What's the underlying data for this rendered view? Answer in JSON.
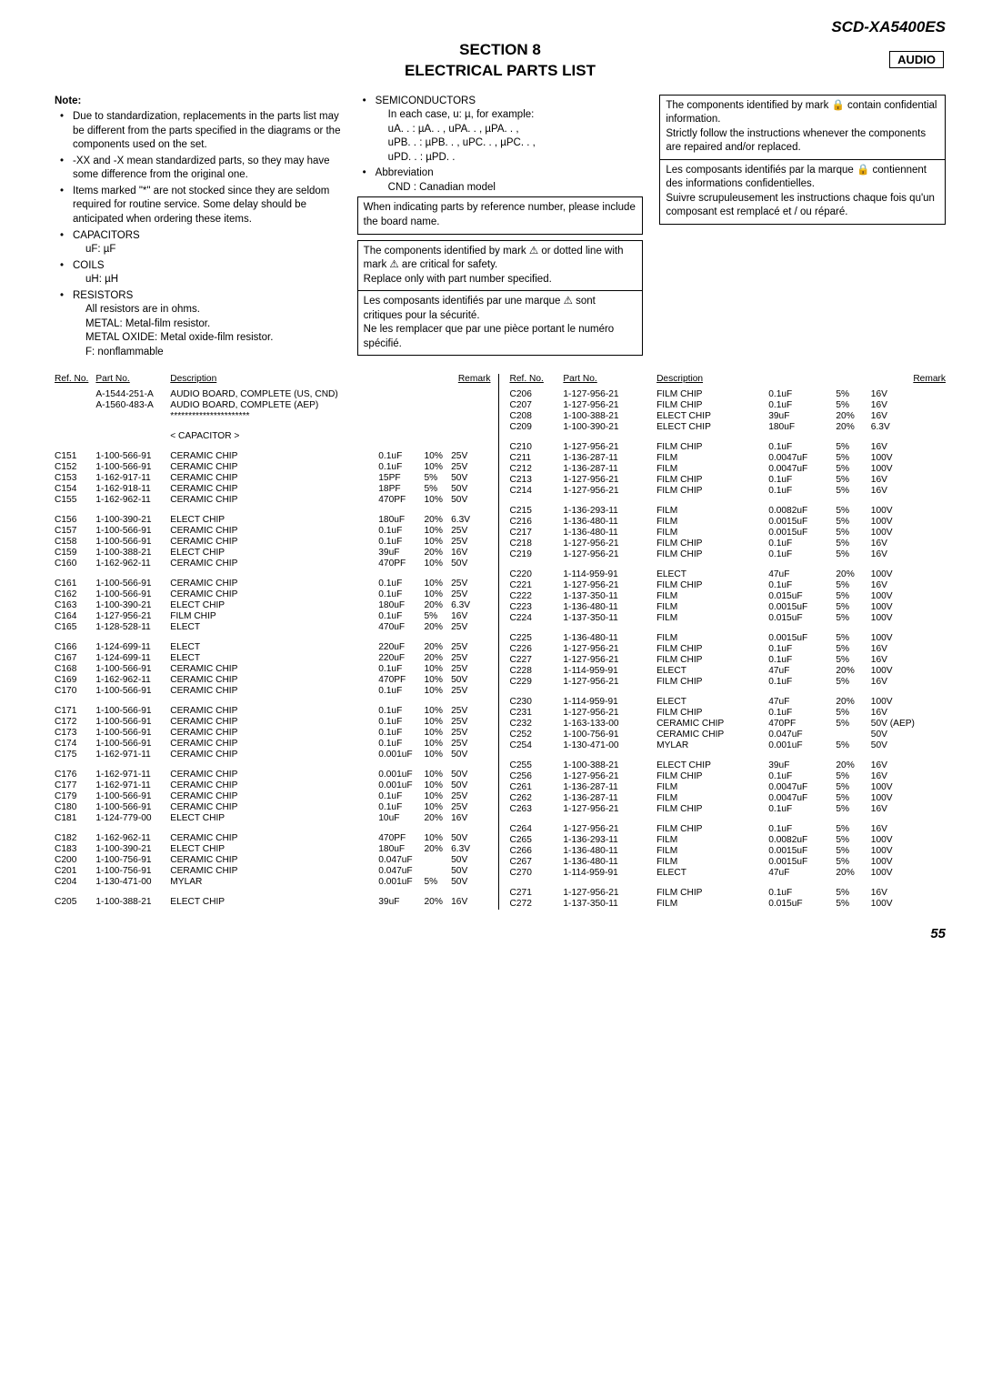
{
  "model": "SCD-XA5400ES",
  "section_title_l1": "SECTION  8",
  "section_title_l2": "ELECTRICAL  PARTS  LIST",
  "audio_label": "AUDIO",
  "note_heading": "Note:",
  "notes_col1": [
    "Due to standardization, replacements in the parts list may be different from the parts specified in the diagrams or the components used on the set.",
    "-XX and -X mean standardized parts, so they may have some difference from the original one.",
    "Items marked \"*\" are not stocked since they are seldom required for routine service. Some delay should be anticipated when ordering these items.",
    "CAPACITORS",
    "COILS",
    "RESISTORS"
  ],
  "cap_line": "uF: µF",
  "coil_line": "uH: µH",
  "res_lines": [
    "All resistors are in ohms.",
    "METAL: Metal-film resistor.",
    "METAL OXIDE: Metal oxide-film resistor.",
    "F: nonflammable"
  ],
  "notes_col2_head": "SEMICONDUCTORS",
  "notes_col2a": [
    "In each case, u: µ, for example:",
    "uA. .   : µA. . , uPA. . , µPA. . ,",
    "uPB. . : µPB. . , uPC. . , µPC. . ,",
    "uPD. . : µPD. ."
  ],
  "notes_col2_abbr": "Abbreviation",
  "notes_col2_cnd": "CND   : Canadian model",
  "box1": "When indicating parts by reference number, please include the board name.",
  "box2a": "The components identified by mark ⚠ or dotted line with mark ⚠ are critical for safety.",
  "box2b": "Replace only with part number specified.",
  "box2c": "Les composants identifiés par une marque ⚠ sont critiques pour la sécurité.",
  "box2d": "Ne les remplacer que par une pièce portant le numéro spécifié.",
  "box3a": "The components identified by mark 🔒 contain confidential information.",
  "box3b": "Strictly follow the instructions whenever the components are repaired and/or replaced.",
  "box3c": "Les composants identifiés par la marque 🔒 contiennent des informations confidentielles.",
  "box3d": "Suivre scrupuleusement les instructions chaque fois qu'un composant est remplacé et / ou réparé.",
  "headers": [
    "Ref. No.",
    "Part No.",
    "Description",
    "",
    "",
    "Remark"
  ],
  "left_intro": [
    [
      "",
      "A-1544-251-A",
      "AUDIO BOARD, COMPLETE (US, CND)",
      "",
      "",
      ""
    ],
    [
      "",
      "A-1560-483-A",
      "AUDIO BOARD, COMPLETE (AEP)",
      "",
      "",
      ""
    ],
    [
      "",
      "",
      "**********************",
      "",
      "",
      ""
    ]
  ],
  "cap_header": "< CAPACITOR >",
  "left_groups": [
    [
      [
        "C151",
        "1-100-566-91",
        "CERAMIC CHIP",
        "0.1uF",
        "10%",
        "25V"
      ],
      [
        "C152",
        "1-100-566-91",
        "CERAMIC CHIP",
        "0.1uF",
        "10%",
        "25V"
      ],
      [
        "C153",
        "1-162-917-11",
        "CERAMIC CHIP",
        "15PF",
        "5%",
        "50V"
      ],
      [
        "C154",
        "1-162-918-11",
        "CERAMIC CHIP",
        "18PF",
        "5%",
        "50V"
      ],
      [
        "C155",
        "1-162-962-11",
        "CERAMIC CHIP",
        "470PF",
        "10%",
        "50V"
      ]
    ],
    [
      [
        "C156",
        "1-100-390-21",
        "ELECT CHIP",
        "180uF",
        "20%",
        "6.3V"
      ],
      [
        "C157",
        "1-100-566-91",
        "CERAMIC CHIP",
        "0.1uF",
        "10%",
        "25V"
      ],
      [
        "C158",
        "1-100-566-91",
        "CERAMIC CHIP",
        "0.1uF",
        "10%",
        "25V"
      ],
      [
        "C159",
        "1-100-388-21",
        "ELECT CHIP",
        "39uF",
        "20%",
        "16V"
      ],
      [
        "C160",
        "1-162-962-11",
        "CERAMIC CHIP",
        "470PF",
        "10%",
        "50V"
      ]
    ],
    [
      [
        "C161",
        "1-100-566-91",
        "CERAMIC CHIP",
        "0.1uF",
        "10%",
        "25V"
      ],
      [
        "C162",
        "1-100-566-91",
        "CERAMIC CHIP",
        "0.1uF",
        "10%",
        "25V"
      ],
      [
        "C163",
        "1-100-390-21",
        "ELECT CHIP",
        "180uF",
        "20%",
        "6.3V"
      ],
      [
        "C164",
        "1-127-956-21",
        "FILM CHIP",
        "0.1uF",
        "5%",
        "16V"
      ],
      [
        "C165",
        "1-128-528-11",
        "ELECT",
        "470uF",
        "20%",
        "25V"
      ]
    ],
    [
      [
        "C166",
        "1-124-699-11",
        "ELECT",
        "220uF",
        "20%",
        "25V"
      ],
      [
        "C167",
        "1-124-699-11",
        "ELECT",
        "220uF",
        "20%",
        "25V"
      ],
      [
        "C168",
        "1-100-566-91",
        "CERAMIC CHIP",
        "0.1uF",
        "10%",
        "25V"
      ],
      [
        "C169",
        "1-162-962-11",
        "CERAMIC CHIP",
        "470PF",
        "10%",
        "50V"
      ],
      [
        "C170",
        "1-100-566-91",
        "CERAMIC CHIP",
        "0.1uF",
        "10%",
        "25V"
      ]
    ],
    [
      [
        "C171",
        "1-100-566-91",
        "CERAMIC CHIP",
        "0.1uF",
        "10%",
        "25V"
      ],
      [
        "C172",
        "1-100-566-91",
        "CERAMIC CHIP",
        "0.1uF",
        "10%",
        "25V"
      ],
      [
        "C173",
        "1-100-566-91",
        "CERAMIC CHIP",
        "0.1uF",
        "10%",
        "25V"
      ],
      [
        "C174",
        "1-100-566-91",
        "CERAMIC CHIP",
        "0.1uF",
        "10%",
        "25V"
      ],
      [
        "C175",
        "1-162-971-11",
        "CERAMIC CHIP",
        "0.001uF",
        "10%",
        "50V"
      ]
    ],
    [
      [
        "C176",
        "1-162-971-11",
        "CERAMIC CHIP",
        "0.001uF",
        "10%",
        "50V"
      ],
      [
        "C177",
        "1-162-971-11",
        "CERAMIC CHIP",
        "0.001uF",
        "10%",
        "50V"
      ],
      [
        "C179",
        "1-100-566-91",
        "CERAMIC CHIP",
        "0.1uF",
        "10%",
        "25V"
      ],
      [
        "C180",
        "1-100-566-91",
        "CERAMIC CHIP",
        "0.1uF",
        "10%",
        "25V"
      ],
      [
        "C181",
        "1-124-779-00",
        "ELECT CHIP",
        "10uF",
        "20%",
        "16V"
      ]
    ],
    [
      [
        "C182",
        "1-162-962-11",
        "CERAMIC CHIP",
        "470PF",
        "10%",
        "50V"
      ],
      [
        "C183",
        "1-100-390-21",
        "ELECT CHIP",
        "180uF",
        "20%",
        "6.3V"
      ],
      [
        "C200",
        "1-100-756-91",
        "CERAMIC CHIP",
        "0.047uF",
        "",
        "50V"
      ],
      [
        "C201",
        "1-100-756-91",
        "CERAMIC CHIP",
        "0.047uF",
        "",
        "50V"
      ],
      [
        "C204",
        "1-130-471-00",
        "MYLAR",
        "0.001uF",
        "5%",
        "50V"
      ]
    ],
    [
      [
        "C205",
        "1-100-388-21",
        "ELECT CHIP",
        "39uF",
        "20%",
        "16V"
      ]
    ]
  ],
  "right_groups": [
    [
      [
        "C206",
        "1-127-956-21",
        "FILM CHIP",
        "0.1uF",
        "5%",
        "16V"
      ],
      [
        "C207",
        "1-127-956-21",
        "FILM CHIP",
        "0.1uF",
        "5%",
        "16V"
      ],
      [
        "C208",
        "1-100-388-21",
        "ELECT CHIP",
        "39uF",
        "20%",
        "16V"
      ],
      [
        "C209",
        "1-100-390-21",
        "ELECT CHIP",
        "180uF",
        "20%",
        "6.3V"
      ]
    ],
    [
      [
        "C210",
        "1-127-956-21",
        "FILM CHIP",
        "0.1uF",
        "5%",
        "16V"
      ],
      [
        "C211",
        "1-136-287-11",
        "FILM",
        "0.0047uF",
        "5%",
        "100V"
      ],
      [
        "C212",
        "1-136-287-11",
        "FILM",
        "0.0047uF",
        "5%",
        "100V"
      ],
      [
        "C213",
        "1-127-956-21",
        "FILM CHIP",
        "0.1uF",
        "5%",
        "16V"
      ],
      [
        "C214",
        "1-127-956-21",
        "FILM CHIP",
        "0.1uF",
        "5%",
        "16V"
      ]
    ],
    [
      [
        "C215",
        "1-136-293-11",
        "FILM",
        "0.0082uF",
        "5%",
        "100V"
      ],
      [
        "C216",
        "1-136-480-11",
        "FILM",
        "0.0015uF",
        "5%",
        "100V"
      ],
      [
        "C217",
        "1-136-480-11",
        "FILM",
        "0.0015uF",
        "5%",
        "100V"
      ],
      [
        "C218",
        "1-127-956-21",
        "FILM CHIP",
        "0.1uF",
        "5%",
        "16V"
      ],
      [
        "C219",
        "1-127-956-21",
        "FILM CHIP",
        "0.1uF",
        "5%",
        "16V"
      ]
    ],
    [
      [
        "C220",
        "1-114-959-91",
        "ELECT",
        "47uF",
        "20%",
        "100V"
      ],
      [
        "C221",
        "1-127-956-21",
        "FILM CHIP",
        "0.1uF",
        "5%",
        "16V"
      ],
      [
        "C222",
        "1-137-350-11",
        "FILM",
        "0.015uF",
        "5%",
        "100V"
      ],
      [
        "C223",
        "1-136-480-11",
        "FILM",
        "0.0015uF",
        "5%",
        "100V"
      ],
      [
        "C224",
        "1-137-350-11",
        "FILM",
        "0.015uF",
        "5%",
        "100V"
      ]
    ],
    [
      [
        "C225",
        "1-136-480-11",
        "FILM",
        "0.0015uF",
        "5%",
        "100V"
      ],
      [
        "C226",
        "1-127-956-21",
        "FILM CHIP",
        "0.1uF",
        "5%",
        "16V"
      ],
      [
        "C227",
        "1-127-956-21",
        "FILM CHIP",
        "0.1uF",
        "5%",
        "16V"
      ],
      [
        "C228",
        "1-114-959-91",
        "ELECT",
        "47uF",
        "20%",
        "100V"
      ],
      [
        "C229",
        "1-127-956-21",
        "FILM CHIP",
        "0.1uF",
        "5%",
        "16V"
      ]
    ],
    [
      [
        "C230",
        "1-114-959-91",
        "ELECT",
        "47uF",
        "20%",
        "100V"
      ],
      [
        "C231",
        "1-127-956-21",
        "FILM CHIP",
        "0.1uF",
        "5%",
        "16V"
      ],
      [
        "C232",
        "1-163-133-00",
        "CERAMIC CHIP",
        "470PF",
        "5%",
        "50V (AEP)"
      ],
      [
        "C252",
        "1-100-756-91",
        "CERAMIC CHIP",
        "0.047uF",
        "",
        "50V"
      ],
      [
        "C254",
        "1-130-471-00",
        "MYLAR",
        "0.001uF",
        "5%",
        "50V"
      ]
    ],
    [
      [
        "C255",
        "1-100-388-21",
        "ELECT CHIP",
        "39uF",
        "20%",
        "16V"
      ],
      [
        "C256",
        "1-127-956-21",
        "FILM CHIP",
        "0.1uF",
        "5%",
        "16V"
      ],
      [
        "C261",
        "1-136-287-11",
        "FILM",
        "0.0047uF",
        "5%",
        "100V"
      ],
      [
        "C262",
        "1-136-287-11",
        "FILM",
        "0.0047uF",
        "5%",
        "100V"
      ],
      [
        "C263",
        "1-127-956-21",
        "FILM CHIP",
        "0.1uF",
        "5%",
        "16V"
      ]
    ],
    [
      [
        "C264",
        "1-127-956-21",
        "FILM CHIP",
        "0.1uF",
        "5%",
        "16V"
      ],
      [
        "C265",
        "1-136-293-11",
        "FILM",
        "0.0082uF",
        "5%",
        "100V"
      ],
      [
        "C266",
        "1-136-480-11",
        "FILM",
        "0.0015uF",
        "5%",
        "100V"
      ],
      [
        "C267",
        "1-136-480-11",
        "FILM",
        "0.0015uF",
        "5%",
        "100V"
      ],
      [
        "C270",
        "1-114-959-91",
        "ELECT",
        "47uF",
        "20%",
        "100V"
      ]
    ],
    [
      [
        "C271",
        "1-127-956-21",
        "FILM CHIP",
        "0.1uF",
        "5%",
        "16V"
      ],
      [
        "C272",
        "1-137-350-11",
        "FILM",
        "0.015uF",
        "5%",
        "100V"
      ]
    ]
  ],
  "page_number": "55"
}
